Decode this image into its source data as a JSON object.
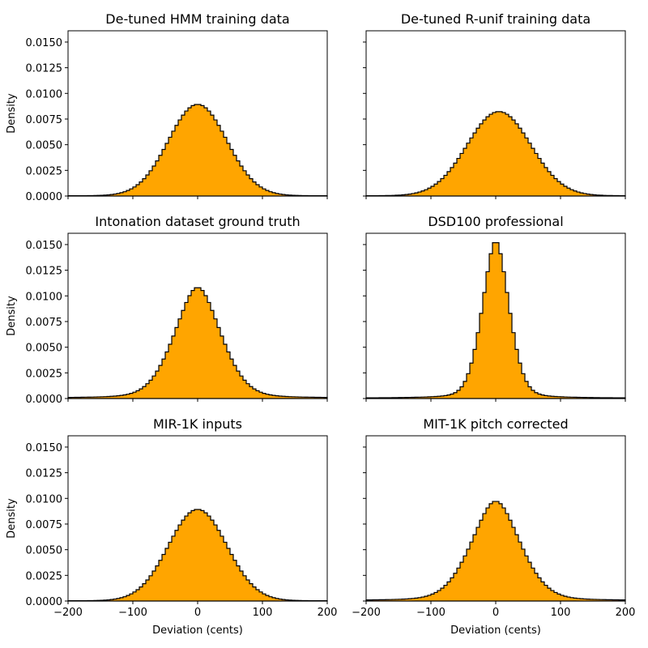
{
  "chart_data": [
    {
      "type": "area",
      "title": "De-tuned HMM training data",
      "xlabel": "",
      "ylabel": "Density",
      "xlim": [
        -200,
        200
      ],
      "ylim": [
        0,
        0.0161
      ],
      "ytick_labels": [
        "0.0000",
        "0.0025",
        "0.0050",
        "0.0075",
        "0.0100",
        "0.0125",
        "0.0150"
      ],
      "xtick_labels": [],
      "color": "#FFA500",
      "mean": 0,
      "sigma": 45,
      "peak": 0.0089,
      "tail_heavy": false
    },
    {
      "type": "area",
      "title": "De-tuned R-unif training data",
      "xlabel": "",
      "ylabel": "",
      "xlim": [
        -200,
        200
      ],
      "ylim": [
        0,
        0.0161
      ],
      "ytick_labels": [],
      "xtick_labels": [],
      "color": "#FFA500",
      "mean": 5,
      "sigma": 49,
      "peak": 0.0082,
      "tail_heavy": false
    },
    {
      "type": "area",
      "title": "Intonation dataset ground truth",
      "xlabel": "",
      "ylabel": "Density",
      "xlim": [
        -200,
        200
      ],
      "ylim": [
        0,
        0.0161
      ],
      "ytick_labels": [
        "0.0000",
        "0.0025",
        "0.0050",
        "0.0075",
        "0.0100",
        "0.0125",
        "0.0150"
      ],
      "xtick_labels": [],
      "color": "#FFA500",
      "mean": 0,
      "sigma": 38,
      "peak": 0.0108,
      "tail_heavy": true
    },
    {
      "type": "area",
      "title": "DSD100 professional",
      "xlabel": "",
      "ylabel": "",
      "xlim": [
        -200,
        200
      ],
      "ylim": [
        0,
        0.0161
      ],
      "ytick_labels": [],
      "xtick_labels": [],
      "color": "#FFA500",
      "mean": 0,
      "sigma": 22,
      "peak": 0.0153,
      "tail_heavy": true
    },
    {
      "type": "area",
      "title": "MIR-1K inputs",
      "xlabel": "Deviation (cents)",
      "ylabel": "Density",
      "xlim": [
        -200,
        200
      ],
      "ylim": [
        0,
        0.0161
      ],
      "ytick_labels": [
        "0.0000",
        "0.0025",
        "0.0050",
        "0.0075",
        "0.0100",
        "0.0125",
        "0.0150"
      ],
      "xtick_labels": [
        "−200",
        "−100",
        "0",
        "100",
        "200"
      ],
      "color": "#FFA500",
      "mean": 0,
      "sigma": 45,
      "peak": 0.0089,
      "tail_heavy": false
    },
    {
      "type": "area",
      "title": "MIT-1K pitch corrected",
      "xlabel": "Deviation (cents)",
      "ylabel": "",
      "xlim": [
        -200,
        200
      ],
      "ylim": [
        0,
        0.0161
      ],
      "ytick_labels": [],
      "xtick_labels": [
        "−200",
        "−100",
        "0",
        "100",
        "200"
      ],
      "color": "#FFA500",
      "mean": 0,
      "sigma": 40,
      "peak": 0.0097,
      "tail_heavy": true
    }
  ]
}
